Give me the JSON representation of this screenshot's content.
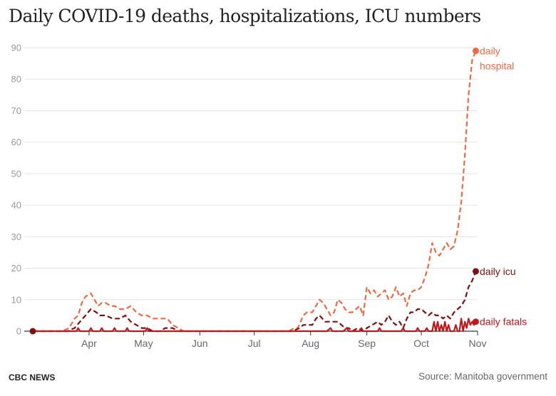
{
  "chart_data": {
    "type": "line",
    "title": "Daily COVID-19 deaths, hospitalizations, ICU numbers",
    "xlabel": "",
    "ylabel": "",
    "x_start": "2020-03-01",
    "x_range": [
      "2020-03-01",
      "2020-11-01"
    ],
    "x_ticks": [
      {
        "label": "Apr",
        "date": "2020-04-01"
      },
      {
        "label": "May",
        "date": "2020-05-01"
      },
      {
        "label": "Jun",
        "date": "2020-06-01"
      },
      {
        "label": "Jul",
        "date": "2020-07-01"
      },
      {
        "label": "Aug",
        "date": "2020-08-01"
      },
      {
        "label": "Sep",
        "date": "2020-09-01"
      },
      {
        "label": "Oct",
        "date": "2020-10-01"
      },
      {
        "label": "Nov",
        "date": "2020-11-01"
      }
    ],
    "ylim": [
      0,
      90
    ],
    "y_ticks": [
      0,
      10,
      20,
      30,
      40,
      50,
      60,
      70,
      80,
      90
    ],
    "grid": true,
    "series": [
      {
        "name": "daily hospital",
        "label_lines": [
          "daily",
          "hospital"
        ],
        "color": "#ee6a45",
        "dash": "dashed",
        "points": [
          [
            "2020-03-01",
            0
          ],
          [
            "2020-03-17",
            0
          ],
          [
            "2020-03-21",
            1
          ],
          [
            "2020-03-24",
            4
          ],
          [
            "2020-03-26",
            5
          ],
          [
            "2020-03-28",
            9
          ],
          [
            "2020-03-30",
            11
          ],
          [
            "2020-04-02",
            12
          ],
          [
            "2020-04-04",
            10
          ],
          [
            "2020-04-06",
            8
          ],
          [
            "2020-04-08",
            9
          ],
          [
            "2020-04-10",
            9
          ],
          [
            "2020-04-13",
            8
          ],
          [
            "2020-04-15",
            8
          ],
          [
            "2020-04-18",
            7
          ],
          [
            "2020-04-21",
            7
          ],
          [
            "2020-04-24",
            8
          ],
          [
            "2020-04-27",
            6
          ],
          [
            "2020-04-30",
            5
          ],
          [
            "2020-05-03",
            5
          ],
          [
            "2020-05-06",
            4
          ],
          [
            "2020-05-10",
            4
          ],
          [
            "2020-05-14",
            4
          ],
          [
            "2020-05-17",
            2
          ],
          [
            "2020-05-20",
            1
          ],
          [
            "2020-05-23",
            0
          ],
          [
            "2020-07-20",
            0
          ],
          [
            "2020-07-23",
            1
          ],
          [
            "2020-07-25",
            1
          ],
          [
            "2020-07-28",
            5
          ],
          [
            "2020-07-30",
            6
          ],
          [
            "2020-08-02",
            6
          ],
          [
            "2020-08-04",
            8
          ],
          [
            "2020-08-06",
            10
          ],
          [
            "2020-08-08",
            9
          ],
          [
            "2020-08-10",
            7
          ],
          [
            "2020-08-12",
            5
          ],
          [
            "2020-08-14",
            6
          ],
          [
            "2020-08-16",
            10
          ],
          [
            "2020-08-18",
            9
          ],
          [
            "2020-08-20",
            7
          ],
          [
            "2020-08-22",
            6
          ],
          [
            "2020-08-24",
            6
          ],
          [
            "2020-08-26",
            7
          ],
          [
            "2020-08-28",
            8
          ],
          [
            "2020-08-30",
            5
          ],
          [
            "2020-09-01",
            14
          ],
          [
            "2020-09-03",
            12
          ],
          [
            "2020-09-05",
            13
          ],
          [
            "2020-09-07",
            11
          ],
          [
            "2020-09-09",
            12
          ],
          [
            "2020-09-11",
            13
          ],
          [
            "2020-09-13",
            10
          ],
          [
            "2020-09-15",
            11
          ],
          [
            "2020-09-17",
            14
          ],
          [
            "2020-09-19",
            11
          ],
          [
            "2020-09-21",
            12
          ],
          [
            "2020-09-23",
            8
          ],
          [
            "2020-09-25",
            12
          ],
          [
            "2020-09-27",
            13
          ],
          [
            "2020-09-29",
            13
          ],
          [
            "2020-10-01",
            14
          ],
          [
            "2020-10-03",
            17
          ],
          [
            "2020-10-05",
            21
          ],
          [
            "2020-10-07",
            28
          ],
          [
            "2020-10-09",
            25
          ],
          [
            "2020-10-11",
            24
          ],
          [
            "2020-10-13",
            26
          ],
          [
            "2020-10-15",
            28
          ],
          [
            "2020-10-17",
            26
          ],
          [
            "2020-10-19",
            27
          ],
          [
            "2020-10-21",
            32
          ],
          [
            "2020-10-23",
            41
          ],
          [
            "2020-10-25",
            56
          ],
          [
            "2020-10-27",
            75
          ],
          [
            "2020-10-29",
            86
          ],
          [
            "2020-10-31",
            89
          ]
        ]
      },
      {
        "name": "daily icu",
        "label_lines": [
          "daily icu"
        ],
        "color": "#7d1011",
        "dash": "dashed",
        "points": [
          [
            "2020-03-01",
            0
          ],
          [
            "2020-03-20",
            0
          ],
          [
            "2020-03-24",
            1
          ],
          [
            "2020-03-27",
            3
          ],
          [
            "2020-03-30",
            5
          ],
          [
            "2020-04-02",
            7
          ],
          [
            "2020-04-05",
            6
          ],
          [
            "2020-04-07",
            5
          ],
          [
            "2020-04-10",
            5
          ],
          [
            "2020-04-14",
            4
          ],
          [
            "2020-04-18",
            4
          ],
          [
            "2020-04-21",
            5
          ],
          [
            "2020-04-24",
            3
          ],
          [
            "2020-04-27",
            2
          ],
          [
            "2020-04-30",
            1
          ],
          [
            "2020-05-03",
            1
          ],
          [
            "2020-05-06",
            0
          ],
          [
            "2020-05-10",
            0
          ],
          [
            "2020-05-13",
            1
          ],
          [
            "2020-05-17",
            1
          ],
          [
            "2020-05-20",
            0
          ],
          [
            "2020-07-22",
            0
          ],
          [
            "2020-07-26",
            1
          ],
          [
            "2020-07-28",
            2
          ],
          [
            "2020-08-02",
            2
          ],
          [
            "2020-08-04",
            4
          ],
          [
            "2020-08-06",
            5
          ],
          [
            "2020-08-09",
            3
          ],
          [
            "2020-08-12",
            3
          ],
          [
            "2020-08-16",
            3
          ],
          [
            "2020-08-18",
            2
          ],
          [
            "2020-08-20",
            1
          ],
          [
            "2020-08-22",
            1
          ],
          [
            "2020-08-24",
            0
          ],
          [
            "2020-08-27",
            1
          ],
          [
            "2020-08-30",
            0
          ],
          [
            "2020-09-01",
            1
          ],
          [
            "2020-09-04",
            2
          ],
          [
            "2020-09-07",
            3
          ],
          [
            "2020-09-09",
            2
          ],
          [
            "2020-09-11",
            3
          ],
          [
            "2020-09-13",
            5
          ],
          [
            "2020-09-15",
            3
          ],
          [
            "2020-09-17",
            2
          ],
          [
            "2020-09-19",
            3
          ],
          [
            "2020-09-21",
            1
          ],
          [
            "2020-09-23",
            4
          ],
          [
            "2020-09-25",
            6
          ],
          [
            "2020-09-27",
            6
          ],
          [
            "2020-09-29",
            7
          ],
          [
            "2020-10-01",
            7
          ],
          [
            "2020-10-03",
            6
          ],
          [
            "2020-10-05",
            5
          ],
          [
            "2020-10-07",
            6
          ],
          [
            "2020-10-09",
            5
          ],
          [
            "2020-10-11",
            5
          ],
          [
            "2020-10-13",
            4
          ],
          [
            "2020-10-15",
            5
          ],
          [
            "2020-10-17",
            4
          ],
          [
            "2020-10-19",
            6
          ],
          [
            "2020-10-21",
            7
          ],
          [
            "2020-10-23",
            8
          ],
          [
            "2020-10-25",
            10
          ],
          [
            "2020-10-27",
            14
          ],
          [
            "2020-10-29",
            16
          ],
          [
            "2020-10-31",
            19
          ]
        ]
      },
      {
        "name": "daily fatals",
        "label_lines": [
          "daily fatals"
        ],
        "color": "#c0171c",
        "dash": "solid",
        "points": [
          [
            "2020-03-01",
            0
          ],
          [
            "2020-03-25",
            0
          ],
          [
            "2020-03-26",
            1
          ],
          [
            "2020-03-27",
            0
          ],
          [
            "2020-04-01",
            0
          ],
          [
            "2020-04-02",
            1
          ],
          [
            "2020-04-03",
            0
          ],
          [
            "2020-04-07",
            0
          ],
          [
            "2020-04-08",
            1
          ],
          [
            "2020-04-09",
            0
          ],
          [
            "2020-04-14",
            0
          ],
          [
            "2020-04-15",
            1
          ],
          [
            "2020-04-16",
            0
          ],
          [
            "2020-04-21",
            0
          ],
          [
            "2020-04-22",
            1
          ],
          [
            "2020-04-23",
            0
          ],
          [
            "2020-05-02",
            0
          ],
          [
            "2020-05-03",
            1
          ],
          [
            "2020-05-04",
            0
          ],
          [
            "2020-08-10",
            0
          ],
          [
            "2020-08-12",
            1
          ],
          [
            "2020-08-13",
            0
          ],
          [
            "2020-08-19",
            0
          ],
          [
            "2020-08-21",
            1
          ],
          [
            "2020-08-22",
            0
          ],
          [
            "2020-08-28",
            0
          ],
          [
            "2020-08-29",
            1
          ],
          [
            "2020-08-30",
            0
          ],
          [
            "2020-09-07",
            0
          ],
          [
            "2020-09-08",
            1
          ],
          [
            "2020-09-09",
            0
          ],
          [
            "2020-09-20",
            0
          ],
          [
            "2020-09-21",
            1
          ],
          [
            "2020-09-22",
            0
          ],
          [
            "2020-09-28",
            0
          ],
          [
            "2020-09-29",
            1
          ],
          [
            "2020-09-30",
            0
          ],
          [
            "2020-10-03",
            0
          ],
          [
            "2020-10-04",
            1
          ],
          [
            "2020-10-05",
            0
          ],
          [
            "2020-10-07",
            0
          ],
          [
            "2020-10-08",
            3
          ],
          [
            "2020-10-09",
            0
          ],
          [
            "2020-10-10",
            3
          ],
          [
            "2020-10-11",
            0
          ],
          [
            "2020-10-12",
            2
          ],
          [
            "2020-10-13",
            0
          ],
          [
            "2020-10-14",
            3
          ],
          [
            "2020-10-15",
            0
          ],
          [
            "2020-10-16",
            2
          ],
          [
            "2020-10-17",
            0
          ],
          [
            "2020-10-19",
            0
          ],
          [
            "2020-10-20",
            2
          ],
          [
            "2020-10-21",
            0
          ],
          [
            "2020-10-22",
            0
          ],
          [
            "2020-10-23",
            4
          ],
          [
            "2020-10-24",
            0
          ],
          [
            "2020-10-25",
            3
          ],
          [
            "2020-10-26",
            1
          ],
          [
            "2020-10-27",
            4
          ],
          [
            "2020-10-28",
            2
          ],
          [
            "2020-10-29",
            3
          ],
          [
            "2020-10-30",
            2
          ],
          [
            "2020-10-31",
            3
          ]
        ]
      }
    ]
  },
  "footer": {
    "brand": "CBC NEWS",
    "source": "Source: Manitoba government"
  },
  "colors": {
    "grid": "#e5e5e5",
    "axis": "#333333",
    "tick_y": "#999999",
    "tick_x": "#666666",
    "start_dot": "#7d1011"
  }
}
